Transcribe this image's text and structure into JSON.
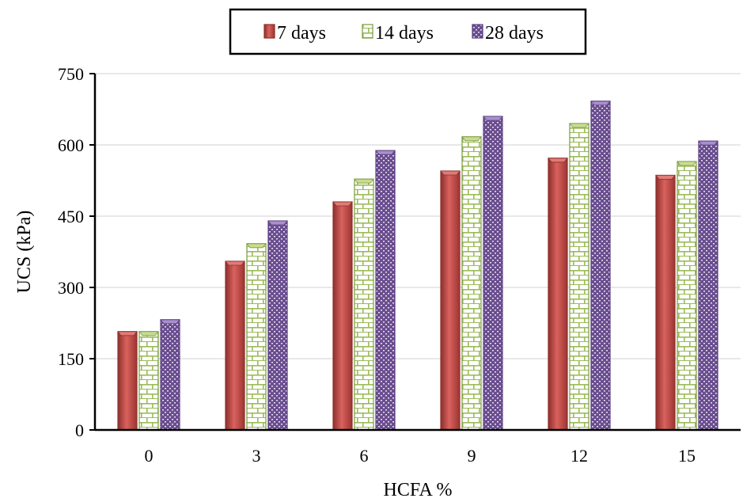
{
  "chart_data": {
    "type": "bar",
    "title": "",
    "xlabel": "HCFA  %",
    "ylabel": "UCS (kPa)",
    "categories": [
      "0",
      "3",
      "6",
      "9",
      "12",
      "15"
    ],
    "ylim": [
      0,
      750
    ],
    "yticks": [
      0,
      150,
      300,
      450,
      600,
      750
    ],
    "grid": true,
    "legend_position": "top-center",
    "series": [
      {
        "name": "7 days",
        "color": "#c0504d",
        "pattern": "solid",
        "values": [
          207,
          355,
          480,
          545,
          572,
          536
        ]
      },
      {
        "name": "14 days",
        "color": "#9bbb59",
        "pattern": "brick",
        "values": [
          207,
          392,
          528,
          617,
          645,
          565
        ]
      },
      {
        "name": "28 days",
        "color": "#8064a2",
        "pattern": "dotted",
        "values": [
          232,
          440,
          588,
          660,
          692,
          608
        ]
      }
    ]
  }
}
